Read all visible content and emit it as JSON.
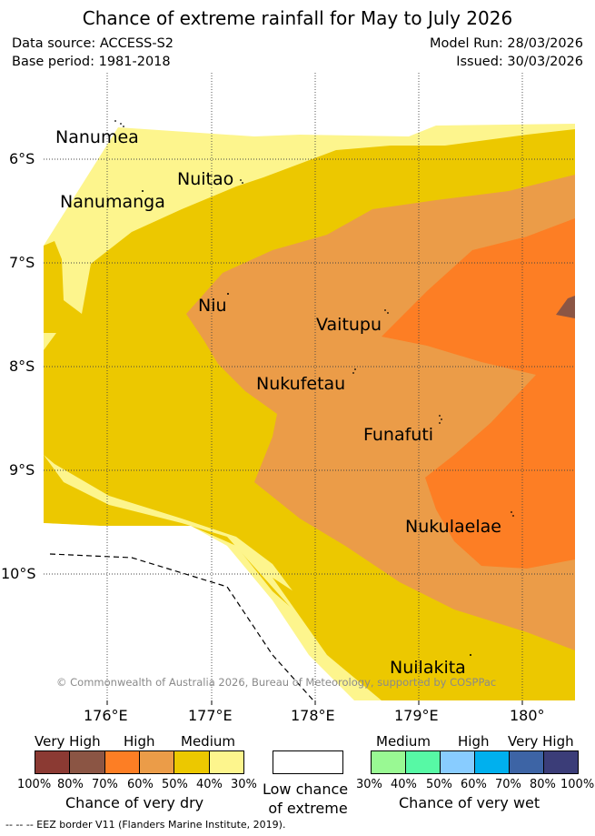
{
  "title": "Chance of extreme rainfall for May to July 2026",
  "meta": {
    "data_source": "Data source: ACCESS-S2",
    "base_period": "Base period: 1981-2018",
    "model_run": "Model Run: 28/03/2026",
    "issued": "Issued: 30/03/2026"
  },
  "map": {
    "copyright": "© Commonwealth of Australia 2026, Bureau of Meteorology, supported by COSPPac",
    "lat_labels": [
      "6°S",
      "7°S",
      "8°S",
      "9°S",
      "10°S"
    ],
    "lon_labels": [
      "176°E",
      "177°E",
      "178°E",
      "179°E",
      "180°"
    ],
    "places": [
      "Nanumea",
      "Nuitao",
      "Nanumanga",
      "Niu",
      "Vaitupu",
      "Nukufetau",
      "Funafuti",
      "Nukulaelae",
      "Nuilakita"
    ],
    "colors": {
      "dry_medium_30": "#fdf58d",
      "dry_medium_40": "#ecc800",
      "dry_high_50": "#eb9c48",
      "dry_high_60": "#fd7e24",
      "dry_veryhigh_70": "#8b5544",
      "dry_veryhigh_80": "#8b3a33"
    }
  },
  "legend": {
    "dry": {
      "headers": [
        "Very High",
        "High",
        "Medium"
      ],
      "colors": [
        "#8b3a33",
        "#8b5544",
        "#fd7e24",
        "#eb9c48",
        "#ecc800",
        "#fdf58d"
      ],
      "ticks": [
        "100%",
        "80%",
        "70%",
        "60%",
        "50%",
        "40%",
        "30%"
      ],
      "label": "Chance of very dry"
    },
    "low": {
      "label_line1": "Low chance",
      "label_line2": "of extreme"
    },
    "wet": {
      "headers": [
        "Medium",
        "High",
        "Very High"
      ],
      "colors": [
        "#99f993",
        "#57f9a5",
        "#88ccff",
        "#00b0ee",
        "#3d64a5",
        "#3b3d78"
      ],
      "ticks": [
        "30%",
        "40%",
        "50%",
        "60%",
        "70%",
        "80%",
        "100%"
      ],
      "label": "Chance of very wet"
    }
  },
  "footnote": "-- -- -- EEZ border V11 (Flanders Marine Institute, 2019)."
}
